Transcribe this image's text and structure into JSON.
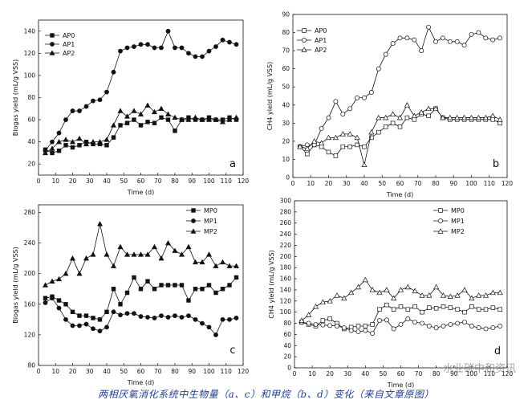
{
  "caption": "两相厌氧消化系统中生物量（a、c）和甲烷（b、d）变化（来自文章原图）",
  "watermark": "水业碳中和资讯",
  "chart_data": [
    {
      "type": "line",
      "panel": "a",
      "xlabel": "Time (d)",
      "ylabel": "Biogas yield (mL/g VSS)",
      "xlim": [
        0,
        120
      ],
      "ylim": [
        10,
        150
      ],
      "xticks": [
        0,
        10,
        20,
        30,
        40,
        50,
        60,
        70,
        80,
        90,
        100,
        110,
        120
      ],
      "yticks": [
        20,
        40,
        60,
        80,
        100,
        120,
        140
      ],
      "legend_position": "top-left",
      "series": [
        {
          "name": "AP0",
          "marker": "square",
          "fill": "black",
          "x": [
            4,
            8,
            12,
            16,
            20,
            24,
            28,
            32,
            36,
            40,
            44,
            48,
            52,
            56,
            60,
            64,
            68,
            72,
            76,
            80,
            84,
            88,
            92,
            96,
            100,
            104,
            108,
            112,
            116
          ],
          "y": [
            33,
            30,
            32,
            37,
            35,
            37,
            40,
            38,
            38,
            37,
            44,
            55,
            57,
            60,
            55,
            58,
            57,
            62,
            60,
            50,
            60,
            62,
            60,
            60,
            62,
            60,
            60,
            62,
            60
          ]
        },
        {
          "name": "AP1",
          "marker": "circle",
          "fill": "black",
          "x": [
            4,
            8,
            12,
            16,
            20,
            24,
            28,
            32,
            36,
            40,
            44,
            48,
            52,
            56,
            60,
            64,
            68,
            72,
            76,
            80,
            84,
            88,
            92,
            96,
            100,
            104,
            108,
            112,
            116
          ],
          "y": [
            32,
            40,
            48,
            60,
            68,
            68,
            72,
            77,
            78,
            85,
            103,
            122,
            125,
            126,
            128,
            128,
            125,
            125,
            140,
            125,
            125,
            120,
            117,
            117,
            122,
            126,
            132,
            130,
            128
          ]
        },
        {
          "name": "AP2",
          "marker": "triangle",
          "fill": "black",
          "x": [
            4,
            8,
            12,
            16,
            20,
            24,
            28,
            32,
            36,
            40,
            44,
            48,
            52,
            56,
            60,
            64,
            68,
            72,
            76,
            80,
            84,
            88,
            92,
            96,
            100,
            104,
            108,
            112,
            116
          ],
          "y": [
            30,
            34,
            40,
            42,
            40,
            43,
            38,
            40,
            40,
            42,
            55,
            68,
            63,
            68,
            65,
            73,
            67,
            70,
            65,
            62,
            60,
            60,
            62,
            60,
            60,
            60,
            58,
            60,
            62
          ]
        }
      ]
    },
    {
      "type": "line",
      "panel": "b",
      "xlabel": "Time (d)",
      "ylabel": "CH4 yield (mL/g VSS)",
      "xlim": [
        0,
        120
      ],
      "ylim": [
        0,
        90
      ],
      "xticks": [
        0,
        10,
        20,
        30,
        40,
        50,
        60,
        70,
        80,
        90,
        100,
        110,
        120
      ],
      "yticks": [
        0,
        10,
        20,
        30,
        40,
        50,
        60,
        70,
        80,
        90
      ],
      "legend_position": "top-left",
      "series": [
        {
          "name": "AP0",
          "marker": "square",
          "fill": "none",
          "x": [
            4,
            8,
            12,
            16,
            20,
            24,
            28,
            32,
            36,
            40,
            44,
            48,
            52,
            56,
            60,
            64,
            68,
            72,
            76,
            80,
            84,
            88,
            92,
            96,
            100,
            104,
            108,
            112,
            116
          ],
          "y": [
            17,
            13,
            18,
            17,
            14,
            12,
            17,
            17,
            18,
            17,
            22,
            25,
            28,
            30,
            28,
            33,
            32,
            35,
            34,
            38,
            33,
            32,
            32,
            32,
            32,
            32,
            32,
            32,
            30
          ]
        },
        {
          "name": "AP1",
          "marker": "circle",
          "fill": "none",
          "x": [
            4,
            8,
            12,
            16,
            20,
            24,
            28,
            32,
            36,
            40,
            44,
            48,
            52,
            56,
            60,
            64,
            68,
            72,
            76,
            80,
            84,
            88,
            92,
            96,
            100,
            104,
            108,
            112,
            116
          ],
          "y": [
            17,
            18,
            18,
            27,
            33,
            42,
            35,
            38,
            44,
            44,
            47,
            60,
            68,
            74,
            77,
            77,
            76,
            70,
            83,
            75,
            77,
            75,
            75,
            73,
            79,
            80,
            77,
            76,
            77
          ]
        },
        {
          "name": "AP2",
          "marker": "triangle",
          "fill": "none",
          "x": [
            4,
            8,
            12,
            16,
            20,
            24,
            28,
            32,
            36,
            40,
            44,
            48,
            52,
            56,
            60,
            64,
            68,
            72,
            76,
            80,
            84,
            88,
            92,
            96,
            100,
            104,
            108,
            112,
            116
          ],
          "y": [
            17,
            16,
            20,
            19,
            22,
            22,
            24,
            24,
            22,
            7,
            25,
            33,
            33,
            35,
            33,
            40,
            34,
            36,
            38,
            38,
            33,
            33,
            33,
            33,
            33,
            33,
            33,
            34,
            32
          ]
        }
      ]
    },
    {
      "type": "line",
      "panel": "c",
      "xlabel": "Time (d)",
      "ylabel": "Biogas yield (mL/g VSS)",
      "xlim": [
        0,
        120
      ],
      "ylim": [
        80,
        290
      ],
      "xticks": [
        0,
        10,
        20,
        30,
        40,
        50,
        60,
        70,
        80,
        90,
        100,
        110,
        120
      ],
      "yticks": [
        80,
        120,
        160,
        200,
        240,
        280
      ],
      "legend_position": "top-right",
      "series": [
        {
          "name": "MP0",
          "marker": "square",
          "fill": "black",
          "x": [
            4,
            8,
            12,
            16,
            20,
            24,
            28,
            32,
            36,
            40,
            44,
            48,
            52,
            56,
            60,
            64,
            68,
            72,
            76,
            80,
            84,
            88,
            92,
            96,
            100,
            104,
            108,
            112,
            116
          ],
          "y": [
            168,
            170,
            165,
            160,
            150,
            145,
            145,
            142,
            140,
            150,
            180,
            160,
            175,
            195,
            180,
            190,
            180,
            185,
            185,
            185,
            185,
            165,
            180,
            180,
            185,
            175,
            180,
            185,
            195
          ]
        },
        {
          "name": "MP1",
          "marker": "circle",
          "fill": "black",
          "x": [
            4,
            8,
            12,
            16,
            20,
            24,
            28,
            32,
            36,
            40,
            44,
            48,
            52,
            56,
            60,
            64,
            68,
            72,
            76,
            80,
            84,
            88,
            92,
            96,
            100,
            104,
            108,
            112,
            116
          ],
          "y": [
            162,
            168,
            155,
            140,
            132,
            132,
            134,
            128,
            125,
            130,
            150,
            146,
            148,
            148,
            144,
            143,
            142,
            145,
            143,
            145,
            143,
            145,
            140,
            135,
            130,
            120,
            140,
            140,
            142
          ]
        },
        {
          "name": "MP2",
          "marker": "triangle",
          "fill": "black",
          "x": [
            4,
            8,
            12,
            16,
            20,
            24,
            28,
            32,
            36,
            40,
            44,
            48,
            52,
            56,
            60,
            64,
            68,
            72,
            76,
            80,
            84,
            88,
            92,
            96,
            100,
            104,
            108,
            112,
            116
          ],
          "y": [
            185,
            190,
            193,
            200,
            220,
            200,
            220,
            225,
            265,
            225,
            210,
            235,
            225,
            225,
            225,
            225,
            235,
            220,
            240,
            230,
            225,
            235,
            215,
            215,
            225,
            210,
            215,
            210,
            210
          ]
        }
      ]
    },
    {
      "type": "line",
      "panel": "d",
      "xlabel": "Time (d)",
      "ylabel": "CH4 yield (mL/g VSS)",
      "xlim": [
        0,
        120
      ],
      "ylim": [
        0,
        300
      ],
      "xticks": [
        0,
        10,
        20,
        30,
        40,
        50,
        60,
        70,
        80,
        90,
        100,
        110,
        120
      ],
      "yticks": [
        0,
        20,
        40,
        60,
        80,
        100,
        120,
        140,
        160,
        180,
        200,
        220,
        240,
        260,
        280,
        300
      ],
      "legend_position": "top-right",
      "series": [
        {
          "name": "MP0",
          "marker": "square",
          "fill": "none",
          "x": [
            4,
            8,
            12,
            16,
            20,
            24,
            28,
            32,
            36,
            40,
            44,
            48,
            52,
            56,
            60,
            64,
            68,
            72,
            76,
            80,
            84,
            88,
            92,
            96,
            100,
            104,
            108,
            112,
            116
          ],
          "y": [
            82,
            78,
            75,
            85,
            88,
            80,
            70,
            73,
            75,
            75,
            78,
            105,
            113,
            105,
            110,
            105,
            110,
            100,
            108,
            107,
            110,
            108,
            105,
            100,
            110,
            105,
            105,
            108,
            105
          ]
        },
        {
          "name": "MP1",
          "marker": "circle",
          "fill": "none",
          "x": [
            4,
            8,
            12,
            16,
            20,
            24,
            28,
            32,
            36,
            40,
            44,
            48,
            52,
            56,
            60,
            64,
            68,
            72,
            76,
            80,
            84,
            88,
            92,
            96,
            100,
            104,
            108,
            112,
            116
          ],
          "y": [
            82,
            80,
            78,
            77,
            76,
            75,
            72,
            67,
            65,
            67,
            62,
            85,
            86,
            70,
            78,
            88,
            82,
            80,
            75,
            72,
            75,
            78,
            80,
            82,
            75,
            72,
            70,
            72,
            75
          ]
        },
        {
          "name": "MP2",
          "marker": "triangle",
          "fill": "none",
          "x": [
            4,
            8,
            12,
            16,
            20,
            24,
            28,
            32,
            36,
            40,
            44,
            48,
            52,
            56,
            60,
            64,
            68,
            72,
            76,
            80,
            84,
            88,
            92,
            96,
            100,
            104,
            108,
            112,
            116
          ],
          "y": [
            85,
            95,
            110,
            118,
            120,
            130,
            125,
            135,
            145,
            158,
            140,
            135,
            140,
            125,
            140,
            145,
            138,
            130,
            130,
            145,
            130,
            128,
            130,
            140,
            125,
            130,
            130,
            135,
            135
          ]
        }
      ]
    }
  ]
}
